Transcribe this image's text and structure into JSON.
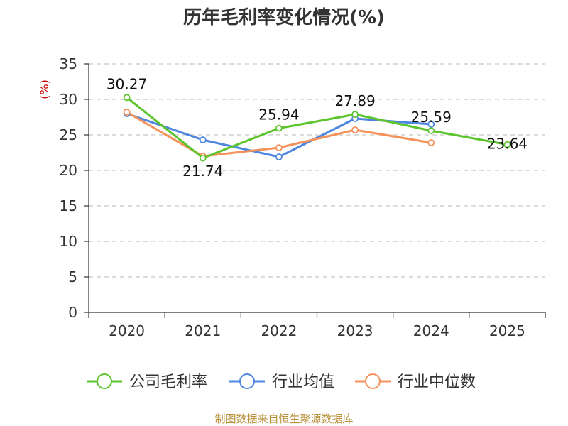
{
  "chart_data": {
    "type": "line",
    "title": "历年毛利率变化情况(%)",
    "ylabel": "(%)",
    "ylim": [
      0,
      35
    ],
    "yticks": [
      0,
      5,
      10,
      15,
      20,
      25,
      30,
      35
    ],
    "categories": [
      "2020",
      "2021",
      "2022",
      "2023",
      "2024",
      "2025"
    ],
    "grid": true,
    "legend_position": "bottom",
    "series": [
      {
        "name": "公司毛利率",
        "color": "#5cc42c",
        "values": [
          30.27,
          21.74,
          25.94,
          27.89,
          25.59,
          23.64
        ],
        "labels": [
          "30.27",
          "21.74",
          "25.94",
          "27.89",
          "25.59",
          "23.64"
        ]
      },
      {
        "name": "行业均值",
        "color": "#4f86df",
        "values": [
          28.0,
          24.3,
          21.9,
          27.3,
          26.5,
          null
        ]
      },
      {
        "name": "行业中位数",
        "color": "#f5925c",
        "values": [
          28.2,
          22.0,
          23.2,
          25.7,
          23.9,
          null
        ]
      }
    ],
    "source": "制图数据来自恒生聚源数据库"
  }
}
